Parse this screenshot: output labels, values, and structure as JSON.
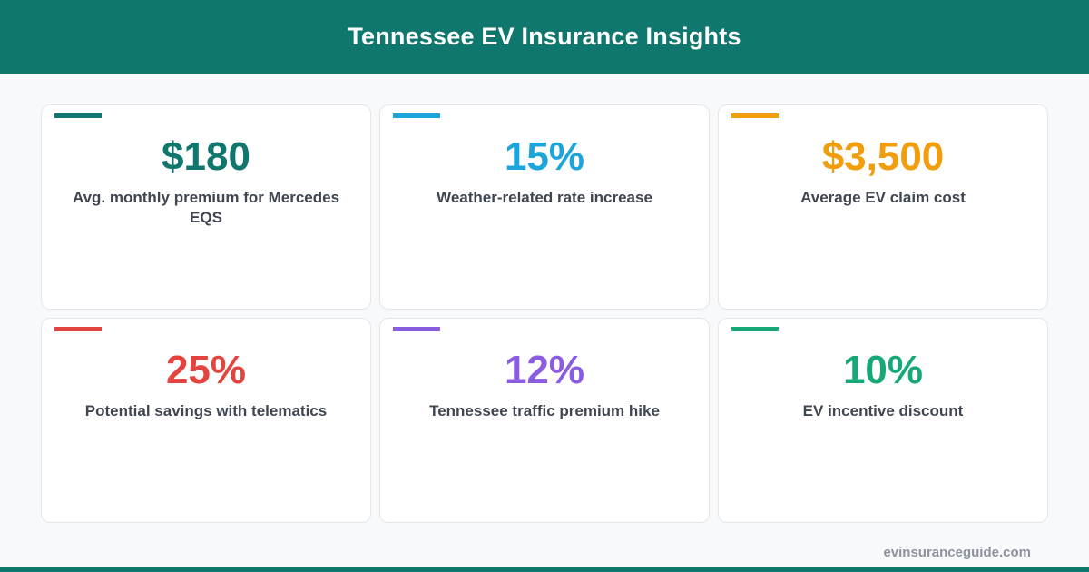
{
  "header": {
    "title": "Tennessee EV Insurance Insights"
  },
  "colors": {
    "header_bg": "#10776f",
    "card_1": "#10776f",
    "card_2": "#1ba5db",
    "card_3": "#f09e0e",
    "card_4": "#e3443f",
    "card_5": "#8a5ce0",
    "card_6": "#17a87a"
  },
  "cards": [
    {
      "value": "$180",
      "label": "Avg. monthly premium for Mercedes EQS"
    },
    {
      "value": "15%",
      "label": "Weather-related rate increase"
    },
    {
      "value": "$3,500",
      "label": "Average EV claim cost"
    },
    {
      "value": "25%",
      "label": "Potential savings with telematics"
    },
    {
      "value": "12%",
      "label": "Tennessee traffic premium hike"
    },
    {
      "value": "10%",
      "label": "EV incentive discount"
    }
  ],
  "footer": {
    "url": "evinsuranceguide.com"
  }
}
